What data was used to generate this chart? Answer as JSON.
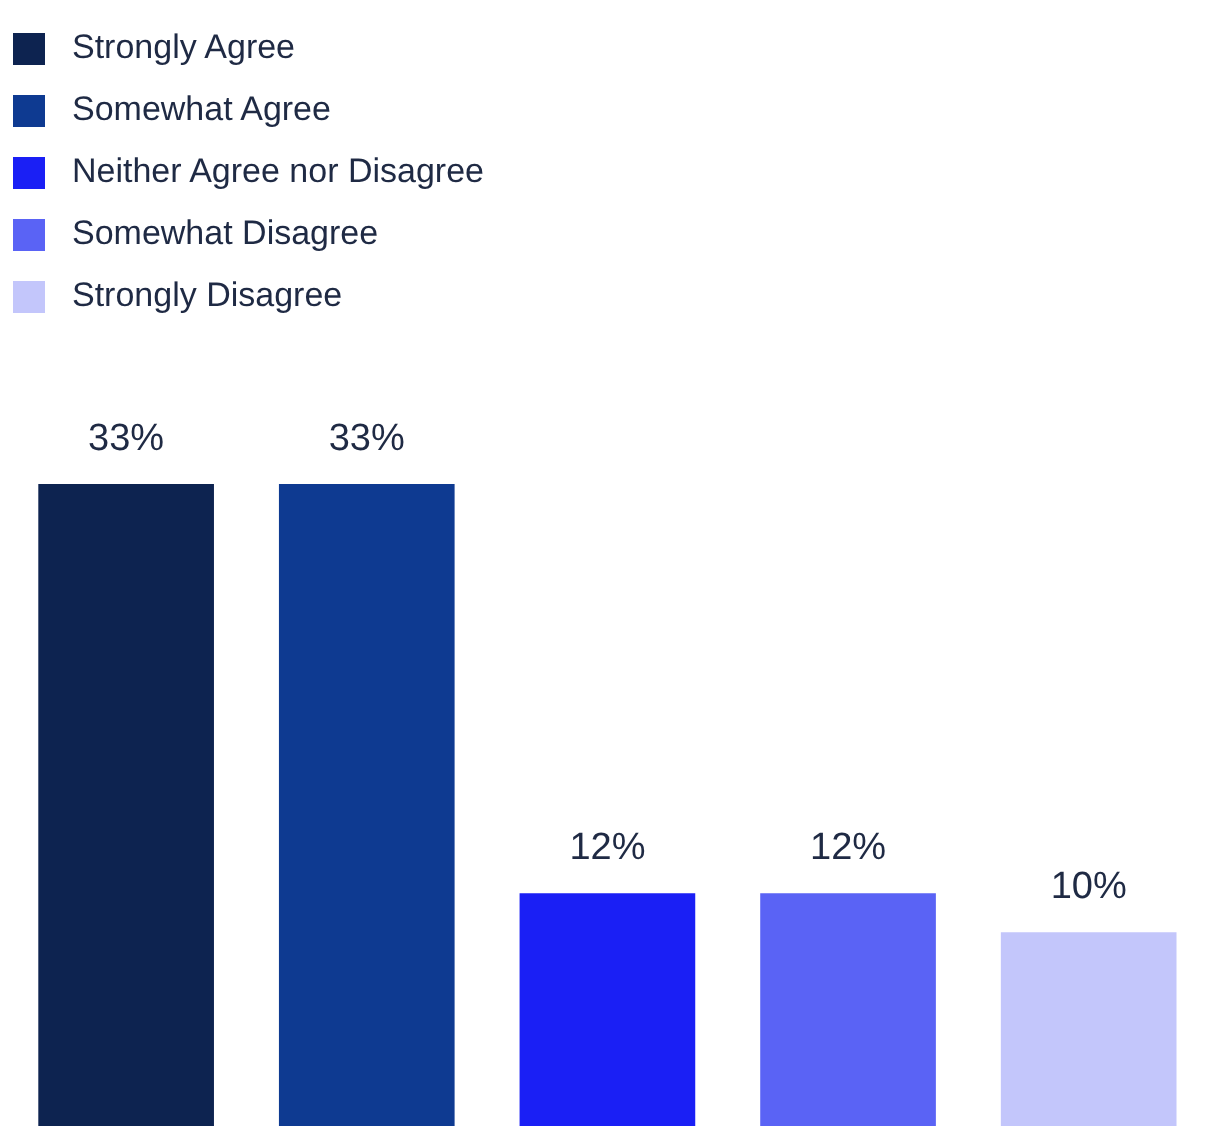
{
  "chart_data": {
    "type": "bar",
    "stacked": true,
    "categories": [
      null,
      null,
      null,
      null,
      null
    ],
    "series": [
      {
        "name": "Strongly Agree",
        "color": "#0d2350",
        "values": [
          33,
          null,
          null,
          null,
          null
        ],
        "value_labels": [
          "33%",
          null,
          null,
          null,
          null
        ]
      },
      {
        "name": "Somewhat Agree",
        "color": "#0e3a91",
        "values": [
          null,
          33,
          null,
          null,
          null
        ],
        "value_labels": [
          null,
          "33%",
          null,
          null,
          null
        ]
      },
      {
        "name": "Neither Agree nor Disagree",
        "color": "#1a1ff5",
        "values": [
          null,
          null,
          12,
          null,
          null
        ],
        "value_labels": [
          null,
          null,
          "12%",
          null,
          null
        ]
      },
      {
        "name": "Somewhat Disagree",
        "color": "#5a63f5",
        "values": [
          null,
          null,
          null,
          12,
          null
        ],
        "value_labels": [
          null,
          null,
          null,
          "12%",
          null
        ]
      },
      {
        "name": "Strongly Disagree",
        "color": "#c3c6fb",
        "values": [
          null,
          null,
          null,
          null,
          10
        ],
        "value_labels": [
          null,
          null,
          null,
          null,
          "10%"
        ]
      }
    ],
    "legend": "top left",
    "tick_labels": false
  }
}
